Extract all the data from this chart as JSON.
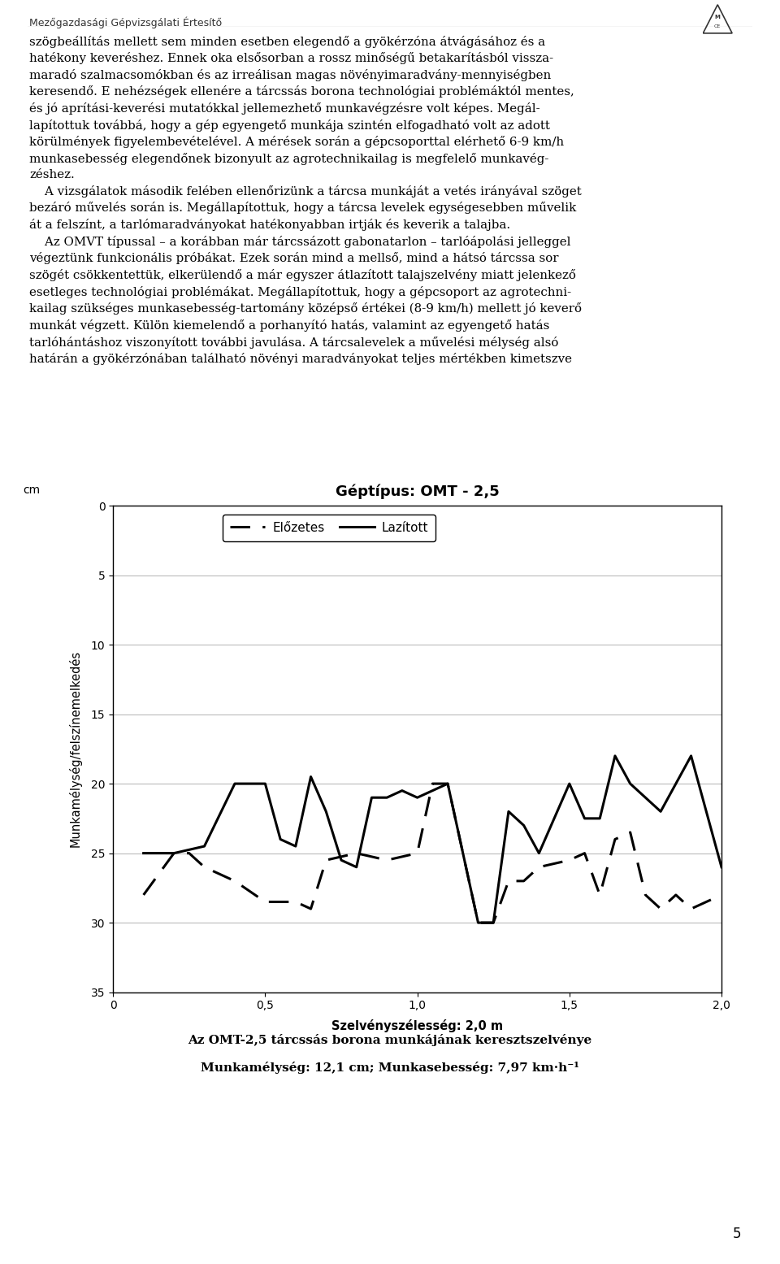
{
  "title": "Géptípus: OMT - 2,5",
  "xlabel": "Szelvényszélesség: 2,0 m",
  "ylabel": "Munkamélység/felszínemelkedés",
  "ylabel_unit": "cm",
  "xlim": [
    0,
    2.0
  ],
  "ylim": [
    35,
    0
  ],
  "yticks": [
    0,
    5,
    10,
    15,
    20,
    25,
    30,
    35
  ],
  "xticks": [
    0,
    0.5,
    1.0,
    1.5,
    2.0
  ],
  "xtick_labels": [
    "0",
    "0,5",
    "1,0",
    "1,5",
    "2,0"
  ],
  "legend_labels": [
    "Előzetes",
    "Lazított"
  ],
  "caption_line1": "Az OMT-2,5 tárcssás borona munkájának keresztszelvénye",
  "caption_line2": "Munkamélység: 12,1 cm; Munkasebesség: 7,97 km·h⁻¹",
  "lazitott_x": [
    0.1,
    0.2,
    0.3,
    0.4,
    0.5,
    0.55,
    0.6,
    0.65,
    0.7,
    0.75,
    0.8,
    0.85,
    0.9,
    0.95,
    1.0,
    1.05,
    1.1,
    1.2,
    1.25,
    1.3,
    1.35,
    1.4,
    1.5,
    1.55,
    1.6,
    1.65,
    1.7,
    1.8,
    1.9,
    2.0
  ],
  "lazitott_y": [
    25.0,
    25.0,
    24.5,
    20.0,
    20.0,
    24.0,
    24.5,
    19.5,
    22.0,
    25.5,
    26.0,
    21.0,
    21.0,
    20.5,
    21.0,
    20.5,
    20.0,
    30.0,
    30.0,
    22.0,
    23.0,
    25.0,
    20.0,
    22.5,
    22.5,
    18.0,
    20.0,
    22.0,
    18.0,
    26.0
  ],
  "elozetes_x": [
    0.1,
    0.2,
    0.25,
    0.3,
    0.4,
    0.5,
    0.6,
    0.65,
    0.7,
    0.8,
    0.9,
    1.0,
    1.05,
    1.1,
    1.2,
    1.25,
    1.3,
    1.35,
    1.4,
    1.5,
    1.55,
    1.6,
    1.65,
    1.7,
    1.75,
    1.8,
    1.85,
    1.9,
    2.0
  ],
  "elozetes_y": [
    28.0,
    25.0,
    25.0,
    26.0,
    27.0,
    28.5,
    28.5,
    29.0,
    25.5,
    25.0,
    25.5,
    25.0,
    20.0,
    20.0,
    30.0,
    30.0,
    27.0,
    27.0,
    26.0,
    25.5,
    25.0,
    28.0,
    24.0,
    23.5,
    28.0,
    29.0,
    28.0,
    29.0,
    28.0
  ],
  "background_color": "#ffffff",
  "line_color": "#000000",
  "grid_color": "#bbbbbb",
  "title_fontsize": 13,
  "axis_label_fontsize": 10.5,
  "tick_fontsize": 10,
  "caption_fontsize": 11,
  "header_text": "Mezőgazdasági Gépvizsgálati Értesítő",
  "page_number": "5",
  "body_text_lines": [
    "szögbeállítás mellett sem minden esetben elegendő a gyökérzóna átvágásához és a",
    "hatékony keveréshez. Ennek oka elsősorban a rossz minőségű betakarításból vissza-",
    "maradó szalmacsomókban és az irreálisan magas növényimaradvány-mennyiségben",
    "keresendő. E nehézségek ellenére a tárcssás borona technológiai problémáktól mentes,",
    "és jó aprítási-keverési mutatókkal jellemezhető munkavégzésre volt képes. Megál-",
    "lapítottuk továbbá, hogy a gép egyengető munkája szintén elfogadható volt az adott",
    "körülmények figyelembevételével. A mérések során a gépcsoporttal elérhető 6-9 km/h",
    "munkasebesség elegendőnek bizonyult az agrotechnikailag is megfelelő munkavég-",
    "zéshez.",
    "    A vizsgálatok második felében ellenőrizünk a tárcsa munkáját a vetés irányával szöget",
    "bezáró művelés során is. Megállapítottuk, hogy a tárcsa levelek egységesebben művelik",
    "át a felszínt, a tarlómaradványokat hatékonyabban irtják és keverik a talajba.",
    "    Az OMVT típussal – a korábban már tárcssázott gabonatarlon – tarlóápolási jelleggel",
    "végeztünk funkcionális próbákat. Ezek során mind a mellső, mind a hátsó tárcssa sor",
    "szögét csökkentettük, elkerülendő a már egyszer átlazított talajszelvény miatt jelenkező",
    "esetleges technológiai problémákat. Megállapítottuk, hogy a gépcsoport az agrotechni-",
    "kailag szükséges munkasebesség-tartomány középső értékei (8-9 km/h) mellett jó keverő",
    "munkát végzett. Külön kiemelendő a porhanyító hatás, valamint az egyengető hatás",
    "tarlóhántáshoz viszonyított további javulása. A tárcsalevelek a művelési mélység alsó",
    "határán a gyökérzónában található növényi maradványokat teljes mértékben kimetszve"
  ]
}
